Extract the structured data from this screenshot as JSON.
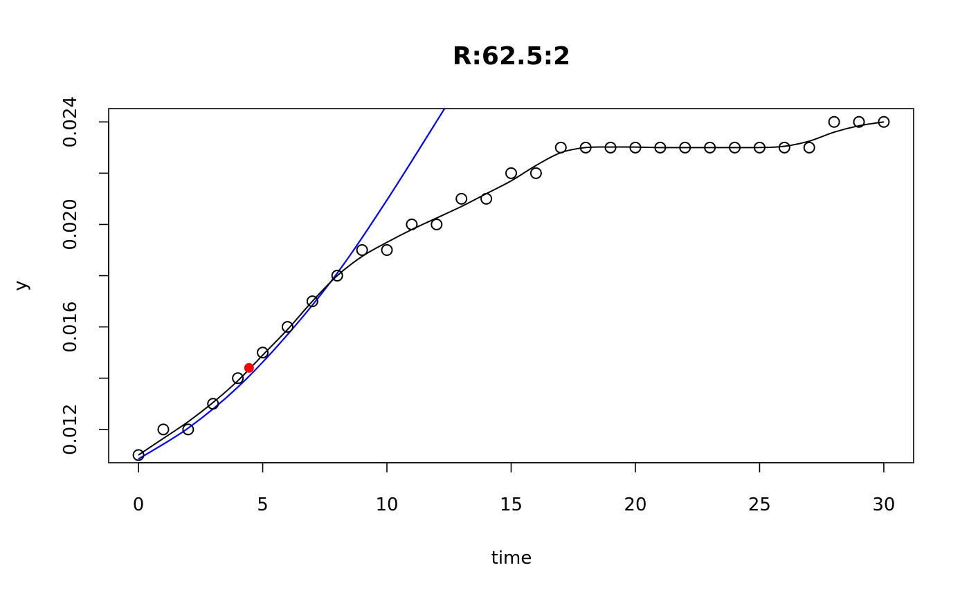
{
  "chart_data": {
    "type": "scatter",
    "title": "R:62.5:2",
    "xlabel": "time",
    "ylabel": "y",
    "xlim": [
      -1.2,
      31.2
    ],
    "ylim": [
      0.0107,
      0.02452
    ],
    "xticks": [
      0,
      5,
      10,
      15,
      20,
      25,
      30
    ],
    "xtick_labels": [
      "0",
      "5",
      "10",
      "15",
      "20",
      "25",
      "30"
    ],
    "yticks": [
      0.012,
      0.014,
      0.016,
      0.018,
      0.02,
      0.022,
      0.024
    ],
    "ytick_labels": [
      "0.012",
      "",
      "0.016",
      "",
      "0.020",
      "",
      "0.024"
    ],
    "grid": false,
    "colors": {
      "points": "#000000",
      "smooth": "#000000",
      "exp_fit": "#0000ff",
      "marker": "#ff0000"
    },
    "points": {
      "x": [
        0,
        1,
        2,
        3,
        4,
        5,
        6,
        7,
        8,
        9,
        10,
        11,
        12,
        13,
        14,
        15,
        16,
        17,
        18,
        19,
        20,
        21,
        22,
        23,
        24,
        25,
        26,
        27,
        28,
        29,
        30
      ],
      "y": [
        0.011,
        0.012,
        0.012,
        0.013,
        0.014,
        0.015,
        0.016,
        0.017,
        0.018,
        0.019,
        0.019,
        0.02,
        0.02,
        0.021,
        0.021,
        0.022,
        0.022,
        0.023,
        0.023,
        0.023,
        0.023,
        0.023,
        0.023,
        0.023,
        0.023,
        0.023,
        0.023,
        0.023,
        0.024,
        0.024,
        0.024
      ]
    },
    "smooth_line": {
      "x": [
        0,
        1,
        2,
        3,
        4,
        5,
        6,
        7,
        8,
        9,
        10,
        11,
        12,
        13,
        14,
        15,
        16,
        17,
        18,
        19,
        20,
        21,
        22,
        23,
        24,
        25,
        26,
        27,
        28,
        29,
        30
      ],
      "y": [
        0.011,
        0.01165,
        0.0123,
        0.01305,
        0.0139,
        0.0149,
        0.0159,
        0.017,
        0.018,
        0.01875,
        0.0193,
        0.0198,
        0.02025,
        0.0207,
        0.0212,
        0.0217,
        0.0223,
        0.0228,
        0.023,
        0.02302,
        0.02302,
        0.023,
        0.023,
        0.023,
        0.023,
        0.023,
        0.02305,
        0.02325,
        0.0236,
        0.02385,
        0.024
      ]
    },
    "exp_fit": {
      "x": [
        0,
        2,
        4,
        6,
        8,
        10,
        12.32
      ],
      "y": [
        0.01085,
        0.01205,
        0.01365,
        0.0157,
        0.0181,
        0.02095,
        0.02452
      ]
    },
    "marker_point": {
      "x": 4.45,
      "y": 0.0144
    }
  }
}
